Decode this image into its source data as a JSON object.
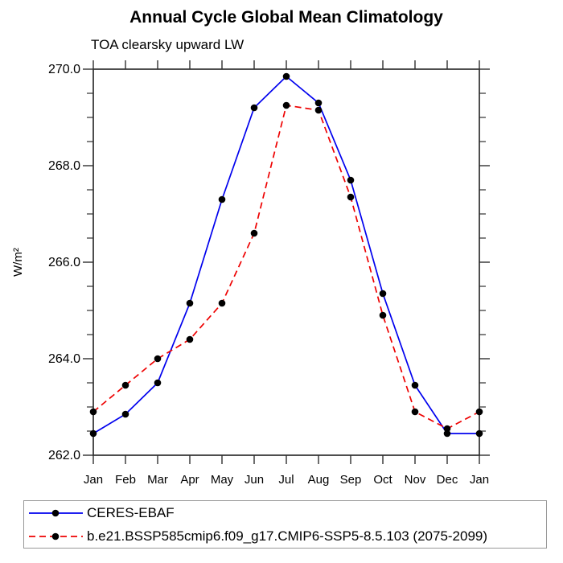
{
  "window": {
    "background_color": "#ffffff"
  },
  "chart_data": {
    "type": "line",
    "title": "Annual Cycle Global Mean Climatology",
    "subtitle": "TOA clearsky upward LW",
    "ylabel": "W/m²",
    "xlabel": "",
    "categories": [
      "Jan",
      "Feb",
      "Mar",
      "Apr",
      "May",
      "Jun",
      "Jul",
      "Aug",
      "Sep",
      "Oct",
      "Nov",
      "Dec",
      "Jan"
    ],
    "ylim": [
      262.0,
      270.0
    ],
    "yticks_major": [
      262.0,
      264.0,
      266.0,
      268.0,
      270.0
    ],
    "ytick_labels": [
      "262.0",
      "264.0",
      "266.0",
      "268.0",
      "270.0"
    ],
    "ytick_minor_step": 0.5,
    "grid": false,
    "legend_position": "bottom-left-box",
    "marker": {
      "shape": "circle",
      "color": "#000000",
      "radius": 4.3
    },
    "axis_color": "#2f2f2f",
    "series": [
      {
        "name": "CERES-EBAF",
        "color": "#0000ee",
        "style": "solid",
        "values": [
          262.45,
          262.85,
          263.5,
          265.15,
          267.3,
          269.2,
          269.85,
          269.3,
          267.7,
          265.35,
          263.45,
          262.45,
          262.45
        ]
      },
      {
        "name": "b.e21.BSSP585cmip6.f09_g17.CMIP6-SSP5-8.5.103 (2075-2099)",
        "color": "#ee0000",
        "style": "dashed",
        "values": [
          262.9,
          263.45,
          264.0,
          264.4,
          265.15,
          266.6,
          269.25,
          269.15,
          267.35,
          264.9,
          262.9,
          262.55,
          262.9
        ]
      }
    ]
  }
}
